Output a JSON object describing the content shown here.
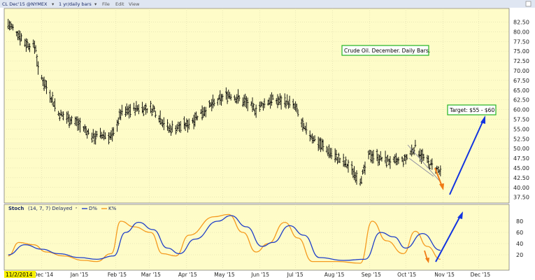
{
  "toolbar": {
    "symbol_label": "CL Dec'15 @NYMEX",
    "period_label": "1 yr/daily bars",
    "menu": [
      "File",
      "Edit",
      "View"
    ]
  },
  "colors": {
    "background": "#fefcc8",
    "price_bars": "#000000",
    "d_line": "#1f3fc8",
    "k_line": "#f59a1e",
    "blue_arrow": "#1234e0",
    "orange_arrow": "#f07a14",
    "annotation_border": "#22b422",
    "channel": "#8a8aa0",
    "grid": "#d6d3a8"
  },
  "chart_data": [
    {
      "type": "bar",
      "subtype": "ohlc",
      "title": "",
      "annotation": "Crude Oil. December. Daily Bars.",
      "target_label": "Target: $55 - $60",
      "yaxis_side": "right",
      "ylim": [
        36,
        86
      ],
      "yticks": [
        "37.50",
        "40.00",
        "42.50",
        "45.00",
        "47.50",
        "50.00",
        "52.50",
        "55.00",
        "57.50",
        "60.00",
        "62.50",
        "65.00",
        "67.50",
        "70.00",
        "72.50",
        "75.00",
        "77.50",
        "80.00",
        "82.50"
      ],
      "grid": true,
      "series": [
        {
          "name": "",
          "keypoints": [
            [
              "2014-11-03",
              82.0
            ],
            [
              "2014-11-10",
              80.0
            ],
            [
              "2014-11-18",
              77.0
            ],
            [
              "2014-11-26",
              76.0
            ],
            [
              "2014-11-28",
              70.0
            ],
            [
              "2014-12-08",
              64.0
            ],
            [
              "2014-12-15",
              59.0
            ],
            [
              "2014-12-29",
              57.0
            ],
            [
              "2015-01-13",
              53.0
            ],
            [
              "2015-01-22",
              53.5
            ],
            [
              "2015-01-29",
              53.0
            ],
            [
              "2015-02-05",
              59.0
            ],
            [
              "2015-02-20",
              60.5
            ],
            [
              "2015-03-05",
              60.0
            ],
            [
              "2015-03-17",
              55.0
            ],
            [
              "2015-04-01",
              56.0
            ],
            [
              "2015-04-14",
              59.5
            ],
            [
              "2015-05-06",
              64.0
            ],
            [
              "2015-05-20",
              62.0
            ],
            [
              "2015-05-28",
              60.0
            ],
            [
              "2015-06-10",
              62.5
            ],
            [
              "2015-06-24",
              62.0
            ],
            [
              "2015-07-01",
              60.5
            ],
            [
              "2015-07-08",
              55.0
            ],
            [
              "2015-07-22",
              51.0
            ],
            [
              "2015-08-05",
              47.5
            ],
            [
              "2015-08-14",
              45.5
            ],
            [
              "2015-08-24",
              42.0
            ],
            [
              "2015-08-27",
              44.0
            ],
            [
              "2015-09-01",
              48.5
            ],
            [
              "2015-09-10",
              47.5
            ],
            [
              "2015-09-21",
              46.5
            ],
            [
              "2015-09-30",
              47.0
            ],
            [
              "2015-10-09",
              50.5
            ],
            [
              "2015-10-16",
              47.5
            ],
            [
              "2015-10-21",
              46.0
            ],
            [
              "2015-10-28",
              44.5
            ],
            [
              "2015-10-30",
              43.5
            ]
          ]
        }
      ]
    },
    {
      "type": "line",
      "title": "Stoch",
      "params": "(14, 7, 7) Delayed",
      "ylim": [
        0,
        100
      ],
      "yticks": [
        "20",
        "40",
        "60",
        "80"
      ],
      "legend": [
        "D%",
        "K%"
      ],
      "series": [
        {
          "name": "D%",
          "points": [
            [
              "2014-11-03",
              20
            ],
            [
              "2014-11-17",
              38
            ],
            [
              "2014-12-01",
              30
            ],
            [
              "2014-12-15",
              22
            ],
            [
              "2015-01-02",
              15
            ],
            [
              "2015-01-16",
              12
            ],
            [
              "2015-01-30",
              18
            ],
            [
              "2015-02-09",
              60
            ],
            [
              "2015-02-20",
              78
            ],
            [
              "2015-03-04",
              65
            ],
            [
              "2015-03-16",
              32
            ],
            [
              "2015-03-26",
              22
            ],
            [
              "2015-04-08",
              48
            ],
            [
              "2015-04-27",
              80
            ],
            [
              "2015-05-08",
              90
            ],
            [
              "2015-05-21",
              70
            ],
            [
              "2015-06-03",
              35
            ],
            [
              "2015-06-12",
              42
            ],
            [
              "2015-06-26",
              72
            ],
            [
              "2015-07-08",
              55
            ],
            [
              "2015-07-21",
              15
            ],
            [
              "2015-08-10",
              10
            ],
            [
              "2015-08-28",
              12
            ],
            [
              "2015-09-10",
              60
            ],
            [
              "2015-09-21",
              52
            ],
            [
              "2015-10-01",
              32
            ],
            [
              "2015-10-15",
              58
            ],
            [
              "2015-10-30",
              28
            ]
          ]
        },
        {
          "name": "K%",
          "points": [
            [
              "2014-11-03",
              18
            ],
            [
              "2014-11-12",
              42
            ],
            [
              "2014-11-24",
              38
            ],
            [
              "2014-12-05",
              25
            ],
            [
              "2014-12-19",
              18
            ],
            [
              "2015-01-05",
              10
            ],
            [
              "2015-01-16",
              8
            ],
            [
              "2015-01-28",
              22
            ],
            [
              "2015-02-05",
              80
            ],
            [
              "2015-02-16",
              70
            ],
            [
              "2015-03-02",
              60
            ],
            [
              "2015-03-12",
              22
            ],
            [
              "2015-03-23",
              18
            ],
            [
              "2015-04-03",
              55
            ],
            [
              "2015-04-24",
              88
            ],
            [
              "2015-05-06",
              92
            ],
            [
              "2015-05-18",
              60
            ],
            [
              "2015-05-29",
              25
            ],
            [
              "2015-06-08",
              40
            ],
            [
              "2015-06-22",
              78
            ],
            [
              "2015-07-03",
              50
            ],
            [
              "2015-07-15",
              8
            ],
            [
              "2015-08-05",
              8
            ],
            [
              "2015-08-24",
              5
            ],
            [
              "2015-09-03",
              80
            ],
            [
              "2015-09-15",
              45
            ],
            [
              "2015-09-29",
              22
            ],
            [
              "2015-10-09",
              62
            ],
            [
              "2015-10-19",
              35
            ],
            [
              "2015-10-30",
              12
            ]
          ]
        }
      ]
    }
  ],
  "x_axis": {
    "start_label": "11/2/2014",
    "labels": [
      "Dec '14",
      "Jan '15",
      "Feb '15",
      "Mar '15",
      "Apr '15",
      "May '15",
      "Jun '15",
      "Jul '15",
      "Aug '15",
      "Sep '15",
      "Oct '15",
      "Nov '15",
      "Dec '15"
    ]
  }
}
